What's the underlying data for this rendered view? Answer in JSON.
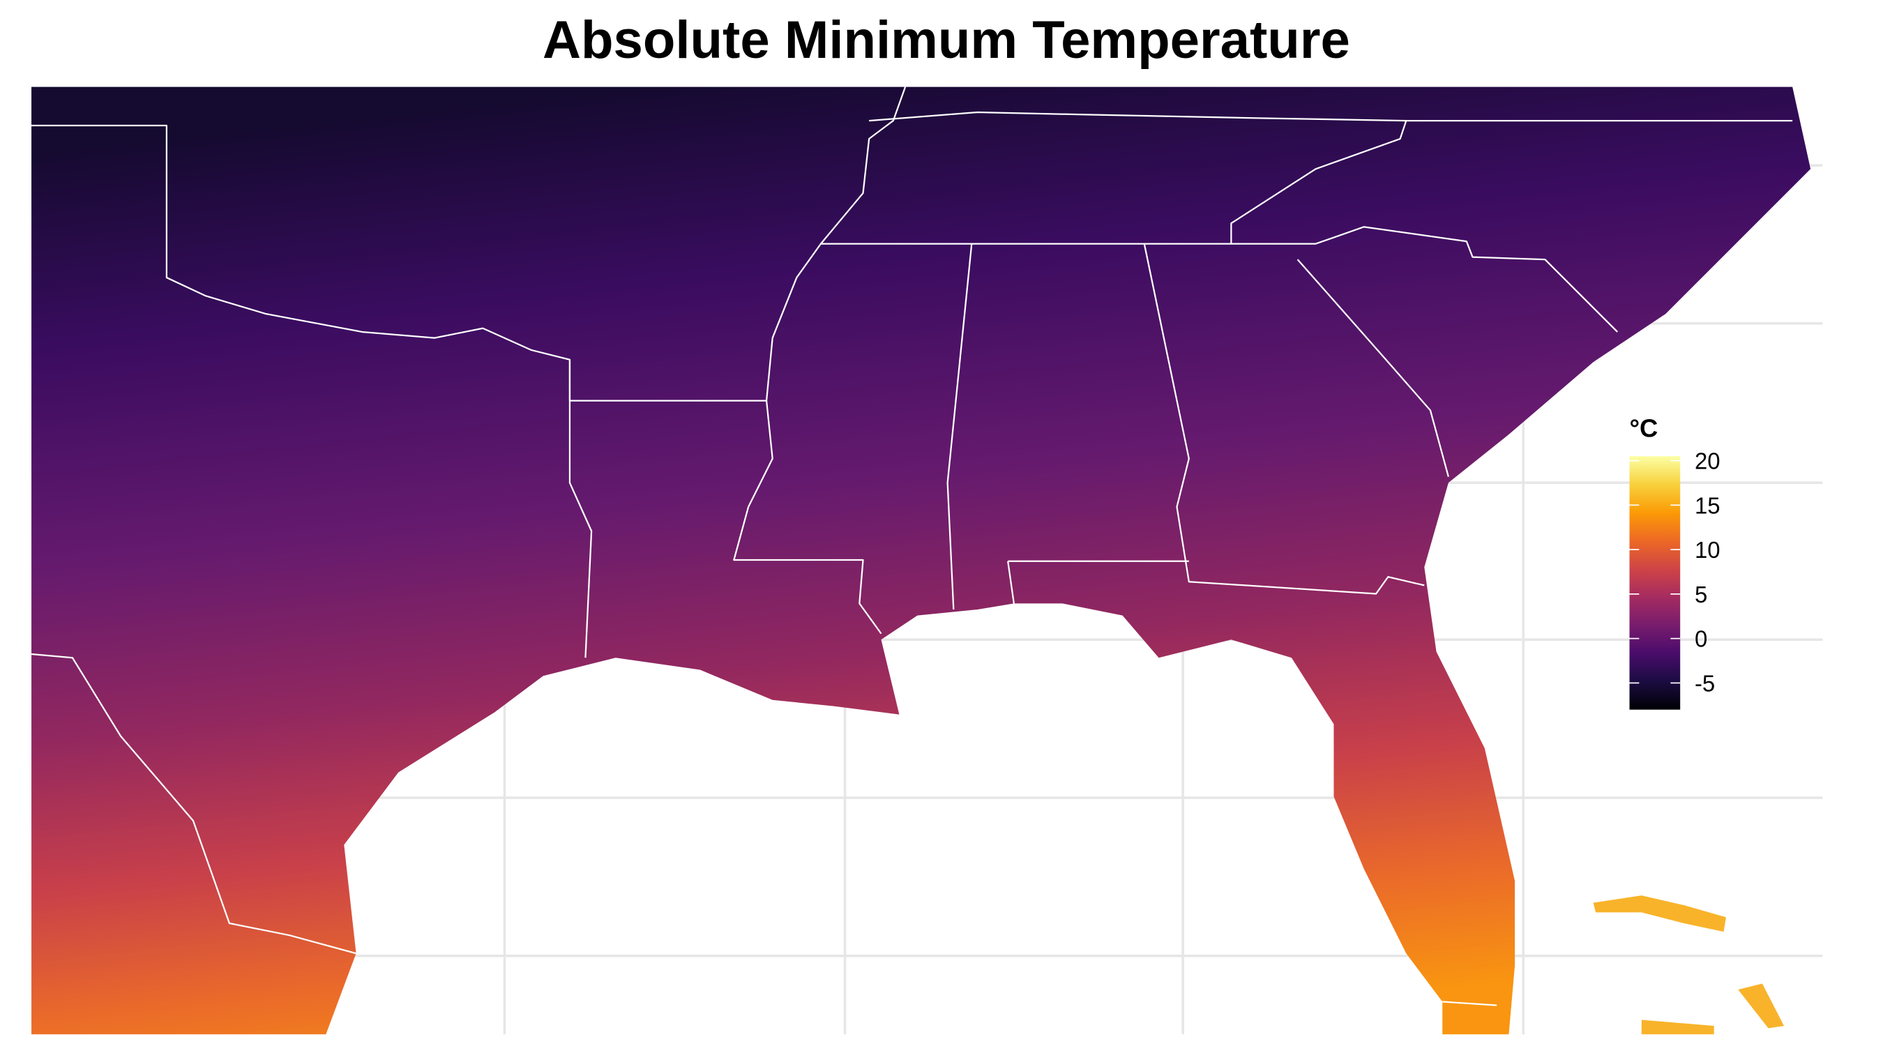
{
  "title": "Absolute Minimum Temperature",
  "legend": {
    "title": "°C",
    "limits": [
      -8,
      20.5
    ],
    "ticks": [
      -5,
      0,
      5,
      10,
      15,
      20
    ],
    "colors": [
      "#000004",
      "#1b0c41",
      "#4a0c6b",
      "#781c6d",
      "#a52c60",
      "#cf4446",
      "#ed6925",
      "#fb9b06",
      "#f7d13d",
      "#fcffa4"
    ]
  }
}
